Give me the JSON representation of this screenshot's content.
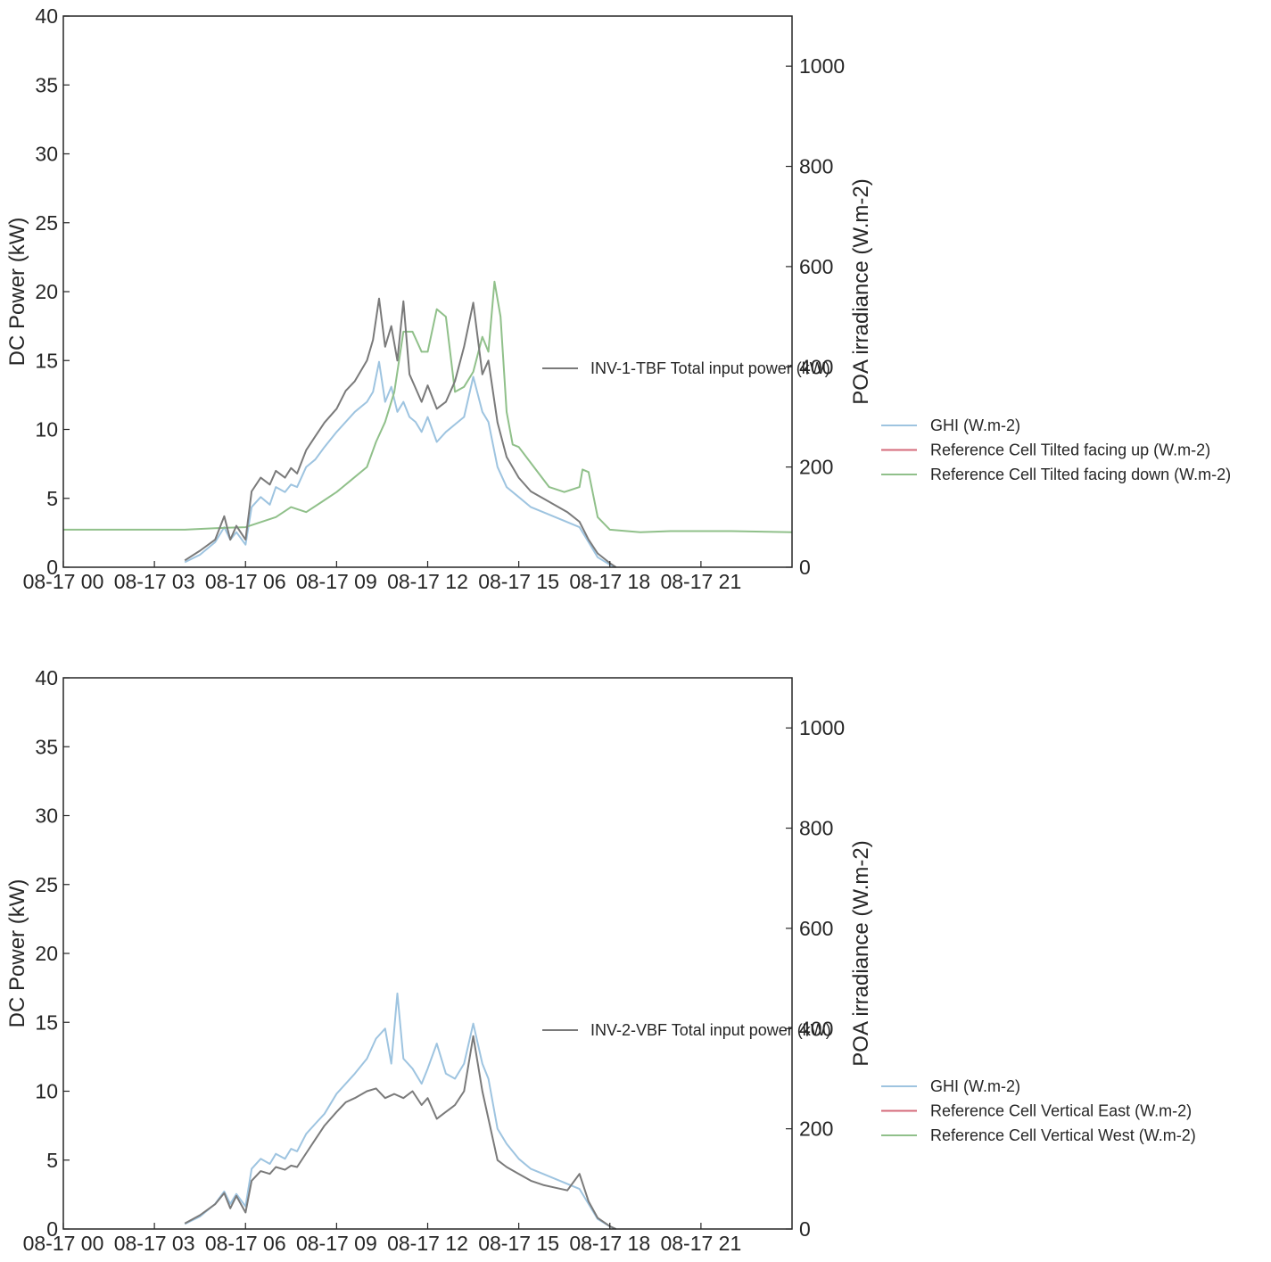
{
  "chart_data": [
    {
      "type": "line",
      "ylabel_left": "DC Power (kW)",
      "ylabel_right": "POA irradiance (W.m-2)",
      "ylim_left": [
        0,
        40
      ],
      "ylim_right": [
        0,
        1100
      ],
      "xlim_hours": [
        0,
        24
      ],
      "yticks_left": [
        0,
        5,
        10,
        15,
        20,
        25,
        30,
        35,
        40
      ],
      "yticks_right": [
        0,
        200,
        400,
        600,
        800,
        1000
      ],
      "xticks": [
        "08-17 00",
        "08-17 03",
        "08-17 06",
        "08-17 09",
        "08-17 12",
        "08-17 15",
        "08-17 18",
        "08-17 21"
      ],
      "grid": false,
      "legend_left": {
        "placement": "center-right",
        "entries": [
          "INV-1-TBF Total input power (kW)"
        ]
      },
      "legend_right": {
        "placement": "outside-right",
        "entries": [
          "GHI (W.m-2)",
          "Reference Cell Tilted facing up (W.m-2)",
          "Reference Cell Tilted facing down (W.m-2)"
        ]
      },
      "series": [
        {
          "name": "INV-1-TBF Total input power (kW)",
          "axis": "left",
          "color": "#7a7a7a",
          "x": [
            4.0,
            4.5,
            5.0,
            5.3,
            5.5,
            5.7,
            6.0,
            6.2,
            6.5,
            6.8,
            7.0,
            7.3,
            7.5,
            7.7,
            8.0,
            8.3,
            8.6,
            9.0,
            9.3,
            9.6,
            10.0,
            10.2,
            10.4,
            10.6,
            10.8,
            11.0,
            11.2,
            11.4,
            11.6,
            11.8,
            12.0,
            12.3,
            12.6,
            12.9,
            13.2,
            13.5,
            13.8,
            14.0,
            14.3,
            14.6,
            15.0,
            15.4,
            15.8,
            16.2,
            16.6,
            17.0,
            17.3,
            17.6,
            18.0,
            18.2
          ],
          "y": [
            0.5,
            1.2,
            2.0,
            3.7,
            2.0,
            3.0,
            2.0,
            5.5,
            6.5,
            6.0,
            7.0,
            6.5,
            7.2,
            6.8,
            8.5,
            9.5,
            10.5,
            11.5,
            12.8,
            13.5,
            15.0,
            16.5,
            19.5,
            16.0,
            17.5,
            15.0,
            19.3,
            14.0,
            13.0,
            12.0,
            13.2,
            11.5,
            12.0,
            13.5,
            16.0,
            19.2,
            14.0,
            15.0,
            10.5,
            8.0,
            6.5,
            5.5,
            5.0,
            4.5,
            4.0,
            3.3,
            2.0,
            1.0,
            0.3,
            0.0
          ]
        },
        {
          "name": "GHI (W.m-2)",
          "axis": "right",
          "color": "#9ec4e0",
          "x": [
            4.0,
            4.5,
            5.0,
            5.3,
            5.5,
            5.7,
            6.0,
            6.2,
            6.5,
            6.8,
            7.0,
            7.3,
            7.5,
            7.7,
            8.0,
            8.3,
            8.6,
            9.0,
            9.3,
            9.6,
            10.0,
            10.2,
            10.4,
            10.6,
            10.8,
            11.0,
            11.2,
            11.4,
            11.6,
            11.8,
            12.0,
            12.3,
            12.6,
            12.9,
            13.2,
            13.5,
            13.8,
            14.0,
            14.3,
            14.6,
            15.0,
            15.4,
            15.8,
            16.2,
            16.6,
            17.0,
            17.3,
            17.6,
            18.0,
            18.2
          ],
          "y": [
            10,
            25,
            50,
            80,
            55,
            70,
            45,
            120,
            140,
            125,
            160,
            150,
            165,
            160,
            200,
            215,
            240,
            270,
            290,
            310,
            330,
            350,
            410,
            330,
            360,
            310,
            330,
            300,
            290,
            270,
            300,
            250,
            270,
            285,
            300,
            380,
            310,
            290,
            200,
            160,
            140,
            120,
            110,
            100,
            90,
            80,
            50,
            20,
            5,
            0
          ]
        },
        {
          "name": "Reference Cell Tilted facing up (W.m-2)",
          "axis": "right",
          "color": "#d46a7a",
          "x": [],
          "y": []
        },
        {
          "name": "Reference Cell Tilted facing down (W.m-2)",
          "axis": "right",
          "color": "#90c08a",
          "x": [
            0.0,
            2.0,
            4.0,
            5.0,
            6.0,
            7.0,
            7.5,
            8.0,
            8.5,
            9.0,
            9.5,
            10.0,
            10.3,
            10.6,
            10.9,
            11.2,
            11.5,
            11.8,
            12.0,
            12.3,
            12.6,
            12.9,
            13.2,
            13.5,
            13.8,
            14.0,
            14.2,
            14.4,
            14.6,
            14.8,
            15.0,
            15.5,
            16.0,
            16.5,
            17.0,
            17.1,
            17.3,
            17.6,
            18.0,
            19.0,
            20.0,
            22.0,
            24.0
          ],
          "y": [
            75,
            75,
            75,
            78,
            80,
            100,
            120,
            110,
            130,
            150,
            175,
            200,
            250,
            290,
            350,
            470,
            470,
            430,
            430,
            515,
            500,
            350,
            360,
            390,
            460,
            430,
            570,
            500,
            310,
            245,
            240,
            200,
            160,
            150,
            160,
            195,
            190,
            100,
            75,
            70,
            72,
            72,
            70
          ]
        }
      ]
    },
    {
      "type": "line",
      "ylabel_left": "DC Power (kW)",
      "ylabel_right": "POA irradiance (W.m-2)",
      "ylim_left": [
        0,
        40
      ],
      "ylim_right": [
        0,
        1100
      ],
      "xlim_hours": [
        0,
        24
      ],
      "yticks_left": [
        0,
        5,
        10,
        15,
        20,
        25,
        30,
        35,
        40
      ],
      "yticks_right": [
        0,
        200,
        400,
        600,
        800,
        1000
      ],
      "xticks": [
        "08-17 00",
        "08-17 03",
        "08-17 06",
        "08-17 09",
        "08-17 12",
        "08-17 15",
        "08-17 18",
        "08-17 21"
      ],
      "grid": false,
      "legend_left": {
        "placement": "center-right",
        "entries": [
          "INV-2-VBF Total input power (kW)"
        ]
      },
      "legend_right": {
        "placement": "outside-right",
        "entries": [
          "GHI (W.m-2)",
          "Reference Cell Vertical East (W.m-2)",
          "Reference Cell Vertical West (W.m-2)"
        ]
      },
      "series": [
        {
          "name": "INV-2-VBF Total input power (kW)",
          "axis": "left",
          "color": "#7a7a7a",
          "x": [
            4.0,
            4.5,
            5.0,
            5.3,
            5.5,
            5.7,
            6.0,
            6.2,
            6.5,
            6.8,
            7.0,
            7.3,
            7.5,
            7.7,
            8.0,
            8.3,
            8.6,
            9.0,
            9.3,
            9.6,
            10.0,
            10.3,
            10.6,
            10.9,
            11.2,
            11.5,
            11.8,
            12.0,
            12.3,
            12.6,
            12.9,
            13.2,
            13.5,
            13.8,
            14.0,
            14.3,
            14.6,
            15.0,
            15.4,
            15.8,
            16.2,
            16.6,
            17.0,
            17.3,
            17.6,
            18.0,
            18.2
          ],
          "y": [
            0.4,
            1.0,
            1.8,
            2.6,
            1.5,
            2.4,
            1.2,
            3.5,
            4.2,
            4.0,
            4.5,
            4.3,
            4.6,
            4.5,
            5.5,
            6.5,
            7.5,
            8.5,
            9.2,
            9.5,
            10.0,
            10.2,
            9.5,
            9.8,
            9.5,
            10.0,
            9.0,
            9.5,
            8.0,
            8.5,
            9.0,
            10.0,
            14.0,
            10.0,
            8.0,
            5.0,
            4.5,
            4.0,
            3.5,
            3.2,
            3.0,
            2.8,
            4.0,
            2.0,
            0.8,
            0.2,
            0.0
          ]
        },
        {
          "name": "GHI (W.m-2)",
          "axis": "right",
          "color": "#9ec4e0",
          "x": [
            4.0,
            4.5,
            5.0,
            5.3,
            5.5,
            5.7,
            6.0,
            6.2,
            6.5,
            6.8,
            7.0,
            7.3,
            7.5,
            7.7,
            8.0,
            8.3,
            8.6,
            9.0,
            9.3,
            9.6,
            10.0,
            10.3,
            10.6,
            10.8,
            11.0,
            11.2,
            11.5,
            11.8,
            12.0,
            12.3,
            12.6,
            12.9,
            13.2,
            13.5,
            13.8,
            14.0,
            14.3,
            14.6,
            15.0,
            15.4,
            15.8,
            16.2,
            16.6,
            17.0,
            17.3,
            17.6,
            18.0,
            18.2
          ],
          "y": [
            10,
            25,
            50,
            75,
            50,
            70,
            45,
            120,
            140,
            130,
            150,
            140,
            160,
            155,
            190,
            210,
            230,
            270,
            290,
            310,
            340,
            380,
            400,
            330,
            470,
            340,
            320,
            290,
            320,
            370,
            310,
            300,
            330,
            410,
            330,
            300,
            200,
            170,
            140,
            120,
            110,
            100,
            90,
            80,
            50,
            20,
            5,
            0
          ]
        },
        {
          "name": "Reference Cell Vertical East (W.m-2)",
          "axis": "right",
          "color": "#d46a7a",
          "x": [],
          "y": []
        },
        {
          "name": "Reference Cell Vertical West (W.m-2)",
          "axis": "right",
          "color": "#90c08a",
          "x": [],
          "y": []
        }
      ]
    }
  ]
}
